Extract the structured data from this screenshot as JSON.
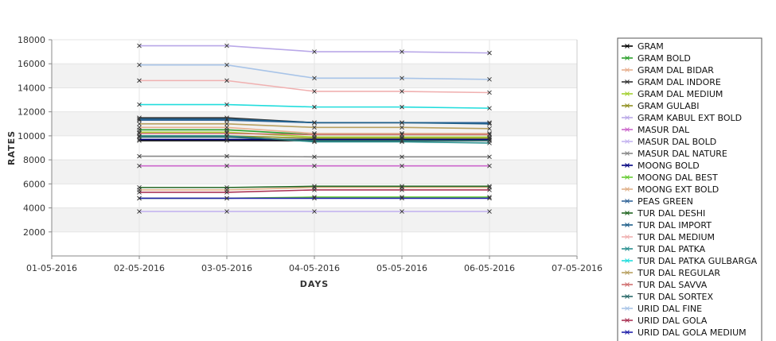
{
  "chart_data": {
    "type": "line",
    "title": "",
    "xlabel": "DAYS",
    "ylabel": "RATES",
    "x_ticks": [
      "01-05-2016",
      "02-05-2016",
      "03-05-2016",
      "04-05-2016",
      "05-05-2016",
      "06-05-2016",
      "07-05-2016"
    ],
    "x": [
      "02-05-2016",
      "03-05-2016",
      "04-05-2016",
      "05-05-2016",
      "06-05-2016"
    ],
    "ylim": [
      0,
      18000
    ],
    "y_ticks": [
      2000,
      4000,
      6000,
      8000,
      10000,
      12000,
      14000,
      16000,
      18000
    ],
    "grid": true,
    "legend_position": "right",
    "series": [
      {
        "name": "GRAM",
        "color": "#000000",
        "values": [
          9600,
          9600,
          9600,
          9600,
          9600
        ]
      },
      {
        "name": "GRAM BOLD",
        "color": "#2ca02c",
        "values": [
          10500,
          10500,
          10100,
          10100,
          10100
        ]
      },
      {
        "name": "GRAM DAL BIDAR",
        "color": "#e8b090",
        "values": [
          10700,
          10700,
          10200,
          10200,
          10200
        ]
      },
      {
        "name": "GRAM DAL INDORE",
        "color": "#333333",
        "values": [
          11500,
          11500,
          11100,
          11100,
          11100
        ]
      },
      {
        "name": "GRAM DAL MEDIUM",
        "color": "#a4d030",
        "values": [
          10300,
          10300,
          9900,
          9900,
          9900
        ]
      },
      {
        "name": "GRAM GULABI",
        "color": "#909020",
        "values": [
          10000,
          10000,
          9800,
          9800,
          9800
        ]
      },
      {
        "name": "GRAM KABUL EXT BOLD",
        "color": "#b9a8e8",
        "values": [
          17500,
          17500,
          17000,
          17000,
          16900
        ]
      },
      {
        "name": "MASUR DAL",
        "color": "#cc66cc",
        "values": [
          7500,
          7500,
          7500,
          7500,
          7500
        ]
      },
      {
        "name": "MASUR DAL BOLD",
        "color": "#c4b4f0",
        "values": [
          3700,
          3700,
          3700,
          3700,
          3700
        ]
      },
      {
        "name": "MASUR DAL NATURE",
        "color": "#888888",
        "values": [
          8300,
          8300,
          8250,
          8250,
          8250
        ]
      },
      {
        "name": "MOONG BOLD",
        "color": "#000080",
        "values": [
          9700,
          9700,
          9700,
          9700,
          9700
        ]
      },
      {
        "name": "MOONG DAL BEST",
        "color": "#66cc33",
        "values": [
          4800,
          4800,
          4900,
          4900,
          4900
        ]
      },
      {
        "name": "MOONG EXT BOLD",
        "color": "#e0b088",
        "values": [
          5500,
          5500,
          5700,
          5700,
          5700
        ]
      },
      {
        "name": "PEAS GREEN",
        "color": "#336699",
        "values": [
          11300,
          11300,
          11100,
          11100,
          11100
        ]
      },
      {
        "name": "TUR DAL DESHI",
        "color": "#226622",
        "values": [
          5700,
          5700,
          5800,
          5800,
          5800
        ]
      },
      {
        "name": "TUR DAL IMPORT",
        "color": "#1f5f8a",
        "values": [
          11400,
          11400,
          11100,
          11100,
          11000
        ]
      },
      {
        "name": "TUR DAL MEDIUM",
        "color": "#f0b0b0",
        "values": [
          14600,
          14600,
          13700,
          13700,
          13600
        ]
      },
      {
        "name": "TUR DAL PATKA",
        "color": "#2a9090",
        "values": [
          10000,
          10000,
          9500,
          9500,
          9400
        ]
      },
      {
        "name": "TUR DAL PATKA GULBARGA",
        "color": "#22dddd",
        "values": [
          12600,
          12600,
          12400,
          12400,
          12300
        ]
      },
      {
        "name": "TUR DAL REGULAR",
        "color": "#b8a060",
        "values": [
          11000,
          11000,
          10700,
          10700,
          10600
        ]
      },
      {
        "name": "TUR DAL SAVVA",
        "color": "#d07070",
        "values": [
          10200,
          10200,
          10100,
          10100,
          10100
        ]
      },
      {
        "name": "TUR DAL SORTEX",
        "color": "#2a6a6a",
        "values": [
          9900,
          9900,
          9600,
          9600,
          9600
        ]
      },
      {
        "name": "URID DAL FINE",
        "color": "#a8c4e8",
        "values": [
          15900,
          15900,
          14800,
          14800,
          14700
        ]
      },
      {
        "name": "URID DAL GOLA",
        "color": "#aa3355",
        "values": [
          5300,
          5300,
          5500,
          5500,
          5500
        ]
      },
      {
        "name": "URID DAL GOLA MEDIUM",
        "color": "#2222aa",
        "values": [
          4800,
          4800,
          4800,
          4800,
          4800
        ]
      }
    ]
  }
}
